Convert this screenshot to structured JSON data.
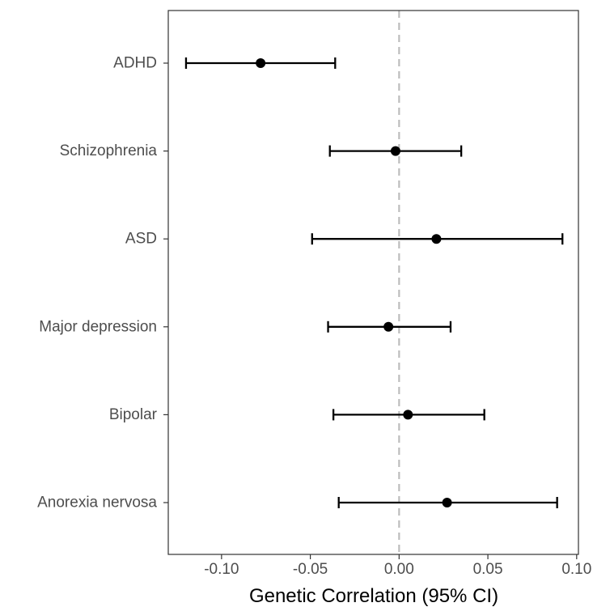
{
  "chart_data": {
    "type": "scatter",
    "subtype": "forest-plot",
    "title": "",
    "xlabel": "Genetic Correlation (95% CI)",
    "ylabel": "",
    "xlim": [
      -0.13,
      0.101
    ],
    "xticks": [
      -0.1,
      -0.05,
      0.0,
      0.05,
      0.1
    ],
    "xtick_labels": [
      "-0.10",
      "-0.05",
      "0.00",
      "0.05",
      "0.10"
    ],
    "categories": [
      "ADHD",
      "Schizophrenia",
      "ASD",
      "Major depression",
      "Bipolar",
      "Anorexia nervosa"
    ],
    "estimates": [
      -0.078,
      -0.002,
      0.021,
      -0.006,
      0.005,
      0.027
    ],
    "ci_lower": [
      -0.12,
      -0.039,
      -0.049,
      -0.04,
      -0.037,
      -0.034
    ],
    "ci_upper": [
      -0.036,
      0.035,
      0.092,
      0.029,
      0.048,
      0.089
    ],
    "reference_line": 0,
    "grid": false,
    "legend": "none",
    "colors": {
      "point": "#000000",
      "errorbar": "#000000",
      "reference_line": "#bdbdbd",
      "panel_border": "#333333",
      "tick_label": "#4d4d4d"
    }
  }
}
